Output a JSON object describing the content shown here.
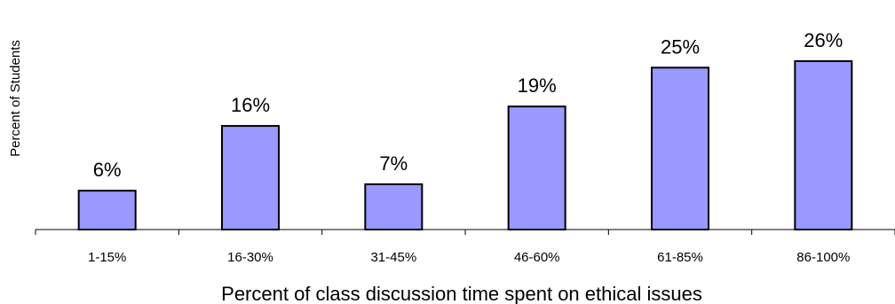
{
  "chart_data": {
    "type": "bar",
    "categories": [
      "1-15%",
      "16-30%",
      "31-45%",
      "46-60%",
      "61-85%",
      "86-100%"
    ],
    "values": [
      6,
      16,
      7,
      19,
      25,
      26
    ],
    "data_labels": [
      "6%",
      "16%",
      "7%",
      "19%",
      "25%",
      "26%"
    ],
    "title": "",
    "xlabel": "Percent of class discussion time spent on ethical issues",
    "ylabel": "Percent of Students",
    "ylim": [
      0,
      26
    ],
    "grid": false,
    "legend": "none",
    "bar_color": "#9999ff"
  }
}
